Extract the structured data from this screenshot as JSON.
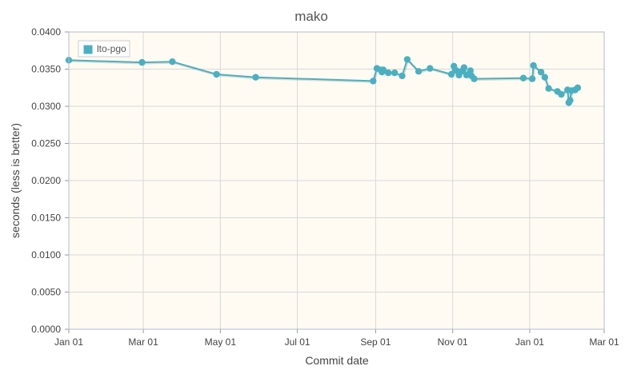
{
  "chart_data": {
    "type": "line",
    "title": "mako",
    "xlabel": "Commit date",
    "ylabel": "seconds (less is better)",
    "x_ticks": [
      "Jan 01",
      "Mar 01",
      "May 01",
      "Jul 01",
      "Sep 01",
      "Nov 01",
      "Jan 01",
      "Mar 01"
    ],
    "xlim": [
      "2017-01-01",
      "2018-03-01"
    ],
    "y_ticks": [
      "0.0000",
      "0.0050",
      "0.0100",
      "0.0150",
      "0.0200",
      "0.0250",
      "0.0300",
      "0.0350",
      "0.0400"
    ],
    "ylim": [
      0,
      0.04
    ],
    "grid": true,
    "legend_position": "top-left",
    "series": [
      {
        "name": "lto-pgo",
        "color": "#4ab0c1",
        "points": [
          {
            "x": "2017-01-01",
            "y": 0.0362
          },
          {
            "x": "2017-02-28",
            "y": 0.0359
          },
          {
            "x": "2017-03-24",
            "y": 0.036
          },
          {
            "x": "2017-04-28",
            "y": 0.0343
          },
          {
            "x": "2017-05-29",
            "y": 0.0339
          },
          {
            "x": "2017-08-30",
            "y": 0.0334
          },
          {
            "x": "2017-09-02",
            "y": 0.0351
          },
          {
            "x": "2017-09-05",
            "y": 0.0349
          },
          {
            "x": "2017-09-06",
            "y": 0.0346
          },
          {
            "x": "2017-09-07",
            "y": 0.0349
          },
          {
            "x": "2017-09-11",
            "y": 0.0345
          },
          {
            "x": "2017-09-16",
            "y": 0.0345
          },
          {
            "x": "2017-09-22",
            "y": 0.0341
          },
          {
            "x": "2017-09-26",
            "y": 0.0363
          },
          {
            "x": "2017-10-05",
            "y": 0.0347
          },
          {
            "x": "2017-10-14",
            "y": 0.0351
          },
          {
            "x": "2017-10-31",
            "y": 0.0343
          },
          {
            "x": "2017-11-02",
            "y": 0.0354
          },
          {
            "x": "2017-11-04",
            "y": 0.0348
          },
          {
            "x": "2017-11-06",
            "y": 0.0342
          },
          {
            "x": "2017-11-08",
            "y": 0.0347
          },
          {
            "x": "2017-11-10",
            "y": 0.0352
          },
          {
            "x": "2017-11-12",
            "y": 0.0342
          },
          {
            "x": "2017-11-15",
            "y": 0.0348
          },
          {
            "x": "2017-11-16",
            "y": 0.0341
          },
          {
            "x": "2017-11-18",
            "y": 0.0337
          },
          {
            "x": "2017-12-27",
            "y": 0.0338
          },
          {
            "x": "2018-01-03",
            "y": 0.0337
          },
          {
            "x": "2018-01-04",
            "y": 0.0355
          },
          {
            "x": "2018-01-10",
            "y": 0.0346
          },
          {
            "x": "2018-01-13",
            "y": 0.0339
          },
          {
            "x": "2018-01-16",
            "y": 0.0324
          },
          {
            "x": "2018-01-23",
            "y": 0.032
          },
          {
            "x": "2018-01-26",
            "y": 0.0316
          },
          {
            "x": "2018-01-31",
            "y": 0.0322
          },
          {
            "x": "2018-02-01",
            "y": 0.0305
          },
          {
            "x": "2018-02-02",
            "y": 0.0308
          },
          {
            "x": "2018-02-03",
            "y": 0.0321
          },
          {
            "x": "2018-02-06",
            "y": 0.0322
          },
          {
            "x": "2018-02-08",
            "y": 0.0325
          }
        ]
      }
    ]
  }
}
